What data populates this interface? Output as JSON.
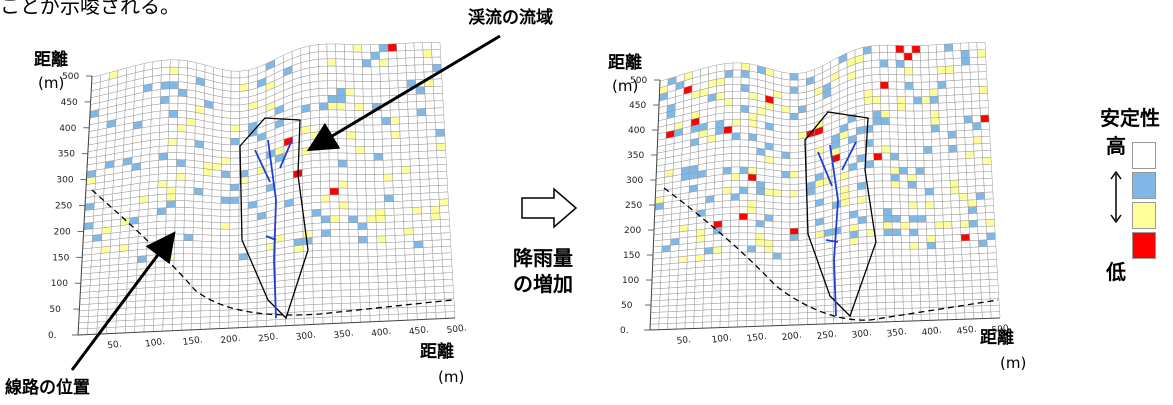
{
  "caption_fragment": "ことが示唆される。",
  "stream_basin_label": "渓流の流域",
  "track_position_label": "線路の位置",
  "left_panel": {
    "y_axis_label": "距離",
    "y_axis_unit": "(m)",
    "x_axis_label": "距離",
    "x_axis_unit": "(m)",
    "y_ticks": [
      "500",
      "450",
      "400",
      "350",
      "300",
      "250",
      "200",
      "150",
      "100",
      "50",
      "0."
    ],
    "x_ticks": [
      "50.",
      "100.",
      "150.",
      "200.",
      "250.",
      "300.",
      "350.",
      "400.",
      "450.",
      "500."
    ]
  },
  "right_panel": {
    "y_axis_label": "距離",
    "y_axis_unit": "(m)",
    "x_axis_label": "距離",
    "x_axis_unit": "(m)",
    "y_ticks": [
      "500",
      "450",
      "400",
      "350",
      "300",
      "250",
      "200",
      "150",
      "100",
      "50",
      "0."
    ],
    "x_ticks": [
      "50.",
      "100.",
      "150.",
      "200.",
      "250.",
      "300.",
      "350.",
      "400.",
      "450.",
      "500."
    ]
  },
  "transition": {
    "line1": "降雨量",
    "line2": "の増加"
  },
  "legend": {
    "title": "安定性",
    "high": "高",
    "low": "低",
    "colors": [
      "#ffffff",
      "#7fb8e6",
      "#ffff99",
      "#ff0000"
    ]
  }
}
